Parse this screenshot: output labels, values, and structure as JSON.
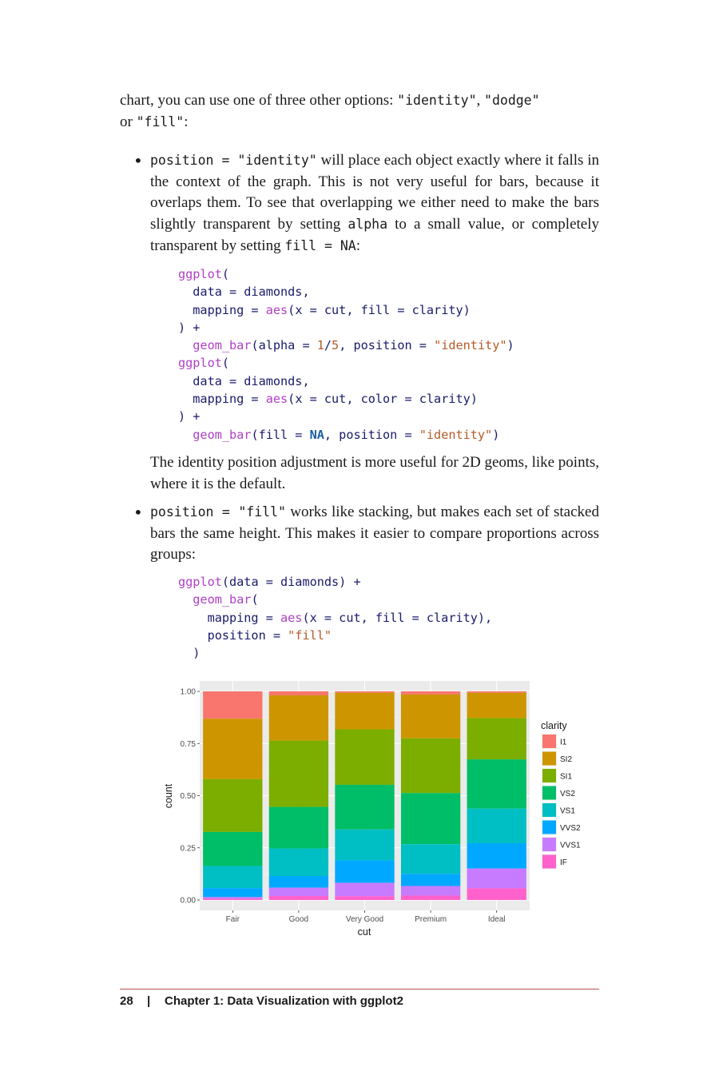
{
  "intro": {
    "text1": "chart, you can use one of three other options: ",
    "opt1": "\"identity\"",
    "sep1": ", ",
    "opt2": "\"dodge\"",
    "text2": "or ",
    "opt3": "\"fill\"",
    "text3": ":"
  },
  "bullet1": {
    "code_head": "position = \"identity\"",
    "text_a": " will place each object exactly where it falls in the context of the graph. This is not very useful for bars, because it overlaps them. To see that overlapping we either need to make the bars slightly transparent by setting ",
    "code_alpha": "alpha",
    "text_b": " to a small value, or completely transparent by setting ",
    "code_fill": "fill = NA",
    "text_c": ":",
    "after": "The identity position adjustment is more useful for 2D geoms, like points, where it is the default."
  },
  "bullet2": {
    "code_head": "position = \"fill\"",
    "text_a": " works like stacking, but makes each set of stacked bars the same height. This makes it easier to compare proportions across groups:"
  },
  "code1": {
    "l1_fn": "ggplot",
    "l1_p": "(",
    "l2": "  data = diamonds,",
    "l3_a": "  mapping = ",
    "l3_fn": "aes",
    "l3_b": "(x = cut, fill = clarity)",
    "l4": ") +",
    "l5_fn": "  geom_bar",
    "l5_a": "(alpha = ",
    "l5_n1": "1",
    "l5_sl": "/",
    "l5_n2": "5",
    "l5_b": ", position = ",
    "l5_s": "\"identity\"",
    "l5_c": ")",
    "l6_fn": "ggplot",
    "l6_p": "(",
    "l7": "  data = diamonds,",
    "l8_a": "  mapping = ",
    "l8_fn": "aes",
    "l8_b": "(x = cut, color = clarity)",
    "l9": ") +",
    "l10_fn": "  geom_bar",
    "l10_a": "(fill = ",
    "l10_kw": "NA",
    "l10_b": ", position = ",
    "l10_s": "\"identity\"",
    "l10_c": ")"
  },
  "code2": {
    "l1_fn": "ggplot",
    "l1_a": "(data = diamonds) +",
    "l2_fn": "  geom_bar",
    "l2_p": "(",
    "l3_a": "    mapping = ",
    "l3_fn": "aes",
    "l3_b": "(x = cut, fill = clarity),",
    "l4_a": "    position = ",
    "l4_s": "\"fill\"",
    "l5": "  )"
  },
  "chart_data": {
    "type": "bar",
    "stacked": true,
    "position": "fill",
    "categories": [
      "Fair",
      "Good",
      "Very Good",
      "Premium",
      "Ideal"
    ],
    "xlabel": "cut",
    "ylabel": "count",
    "ylim": [
      0,
      1
    ],
    "yticks": [
      "0.00",
      "0.25",
      "0.50",
      "0.75",
      "1.00"
    ],
    "legend_title": "clarity",
    "legend_position": "right",
    "grid": true,
    "series": [
      {
        "name": "I1",
        "color": "#F8766D",
        "values": [
          0.131,
          0.019,
          0.007,
          0.015,
          0.007
        ]
      },
      {
        "name": "SI2",
        "color": "#CD9600",
        "values": [
          0.29,
          0.217,
          0.175,
          0.21,
          0.121
        ]
      },
      {
        "name": "SI1",
        "color": "#7CAE00",
        "values": [
          0.253,
          0.318,
          0.266,
          0.262,
          0.198
        ]
      },
      {
        "name": "VS2",
        "color": "#00BE67",
        "values": [
          0.163,
          0.199,
          0.214,
          0.245,
          0.236
        ]
      },
      {
        "name": "VS1",
        "color": "#00BFC4",
        "values": [
          0.106,
          0.132,
          0.148,
          0.142,
          0.166
        ]
      },
      {
        "name": "VVS2",
        "color": "#00A9FF",
        "values": [
          0.043,
          0.056,
          0.108,
          0.058,
          0.121
        ]
      },
      {
        "name": "VVS1",
        "color": "#C77CFF",
        "values": [
          0.008,
          0.04,
          0.064,
          0.046,
          0.095
        ]
      },
      {
        "name": "IF",
        "color": "#FF61CC",
        "values": [
          0.006,
          0.019,
          0.018,
          0.021,
          0.056
        ]
      }
    ]
  },
  "footer": {
    "page": "28",
    "sep": "|",
    "chapter": "Chapter 1: Data Visualization with ggplot2"
  }
}
